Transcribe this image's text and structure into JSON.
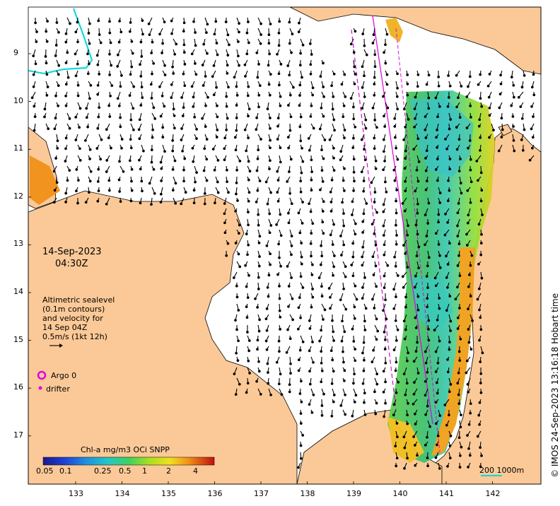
{
  "annotation": {
    "date": "14-Sep-2023",
    "time": "04:30Z",
    "legend_lines": [
      "Altimetric sealevel",
      "(0.1m contours)",
      "and velocity for",
      "14 Sep 04Z",
      "0.5m/s (1kt 12h)"
    ],
    "argo": "Argo 0",
    "drifter": "drifter",
    "copyright": "© IMOS 24-Sep-2023 13:16:18 Hobart time",
    "scale_label": "200  1000m"
  },
  "colorbar": {
    "title": "Chl-a mg/m3 OCi SNPP",
    "ticks": [
      "0.05",
      "0.1",
      "0.25",
      "0.5",
      "1",
      "2",
      "4"
    ]
  },
  "axes": {
    "x_ticks": [
      "133",
      "134",
      "135",
      "136",
      "137",
      "138",
      "139",
      "140",
      "141",
      "142"
    ],
    "y_ticks": [
      "9",
      "10",
      "11",
      "12",
      "13",
      "14",
      "15",
      "16",
      "17"
    ]
  },
  "colors": {
    "land": "#fbc997",
    "ocean": "#ffffff",
    "arrow": "#000000",
    "track": "#e000e0",
    "contour": "#00d8d8"
  }
}
